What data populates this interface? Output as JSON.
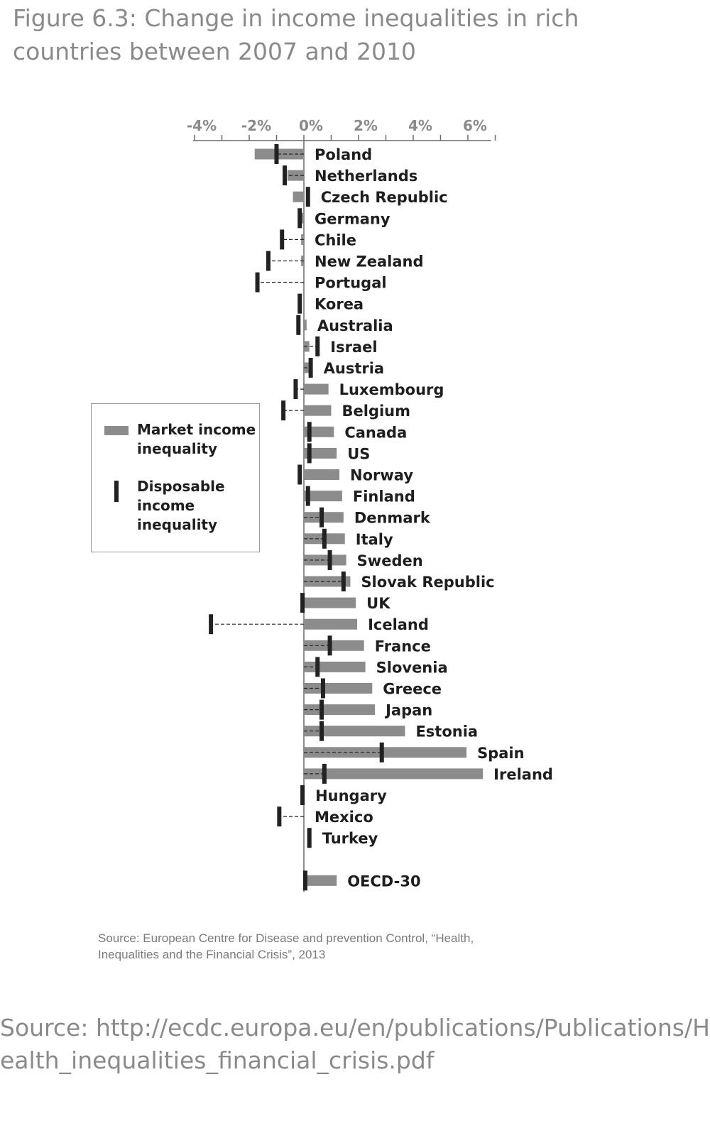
{
  "figure": {
    "title": "Figure 6.3: Change in income inequalities in rich countries between 2007 and 2010",
    "source_note": "Source: European Centre for Disease and prevention Control, “Health, Inequalities and the Financial Crisis”, 2013",
    "source_url": "Source: http://ecdc.europa.eu/en/publications/Publications/Health_inequalities_financial_crisis.pdf"
  },
  "colors": {
    "bar": "#8c8c8c",
    "marker": "#222222",
    "axis": "#6a6a6a",
    "text": "#1e1e1e",
    "muted": "#8a8a8a"
  },
  "chart_data": {
    "type": "bar",
    "orientation": "horizontal",
    "x_ticks": [
      "-4%",
      "-2%",
      "0%",
      "2%",
      "4%",
      "6%"
    ],
    "x_tick_values": [
      -4,
      -2,
      0,
      2,
      4,
      6
    ],
    "xlim": [
      -4,
      7
    ],
    "unit": "%",
    "legend": {
      "placement": "left",
      "items": [
        {
          "name": "Market income inequality",
          "symbol": "bar"
        },
        {
          "name": "Disposable income inequality",
          "symbol": "tick"
        }
      ]
    },
    "categories": [
      "Poland",
      "Netherlands",
      "Czech Republic",
      "Germany",
      "Chile",
      "New Zealand",
      "Portugal",
      "Korea",
      "Australia",
      "Israel",
      "Austria",
      "Luxembourg",
      "Belgium",
      "Canada",
      "US",
      "Norway",
      "Finland",
      "Denmark",
      "Italy",
      "Sweden",
      "Slovak Republic",
      "UK",
      "Iceland",
      "France",
      "Slovenia",
      "Greece",
      "Japan",
      "Estonia",
      "Spain",
      "Ireland",
      "Hungary",
      "Mexico",
      "Turkey",
      "OECD-30"
    ],
    "series": [
      {
        "name": "Market income inequality",
        "values": [
          -1.8,
          -0.6,
          -0.4,
          -0.2,
          -0.1,
          -0.1,
          0.0,
          0.0,
          0.1,
          0.2,
          0.3,
          0.9,
          1.0,
          1.1,
          1.2,
          1.3,
          1.4,
          1.45,
          1.5,
          1.55,
          1.7,
          1.9,
          1.95,
          2.2,
          2.25,
          2.5,
          2.6,
          3.7,
          5.95,
          6.55,
          -0.05,
          0.0,
          0.0,
          1.2
        ]
      },
      {
        "name": "Disposable income inequality",
        "values": [
          -1.0,
          -0.7,
          0.15,
          -0.15,
          -0.8,
          -1.3,
          -1.7,
          -0.15,
          -0.2,
          0.5,
          0.25,
          -0.3,
          -0.75,
          0.2,
          0.2,
          -0.15,
          0.15,
          0.65,
          0.75,
          0.95,
          1.45,
          -0.05,
          -3.4,
          0.95,
          0.5,
          0.7,
          0.65,
          0.65,
          2.85,
          0.75,
          -0.05,
          -0.9,
          0.2,
          0.05
        ]
      }
    ]
  }
}
